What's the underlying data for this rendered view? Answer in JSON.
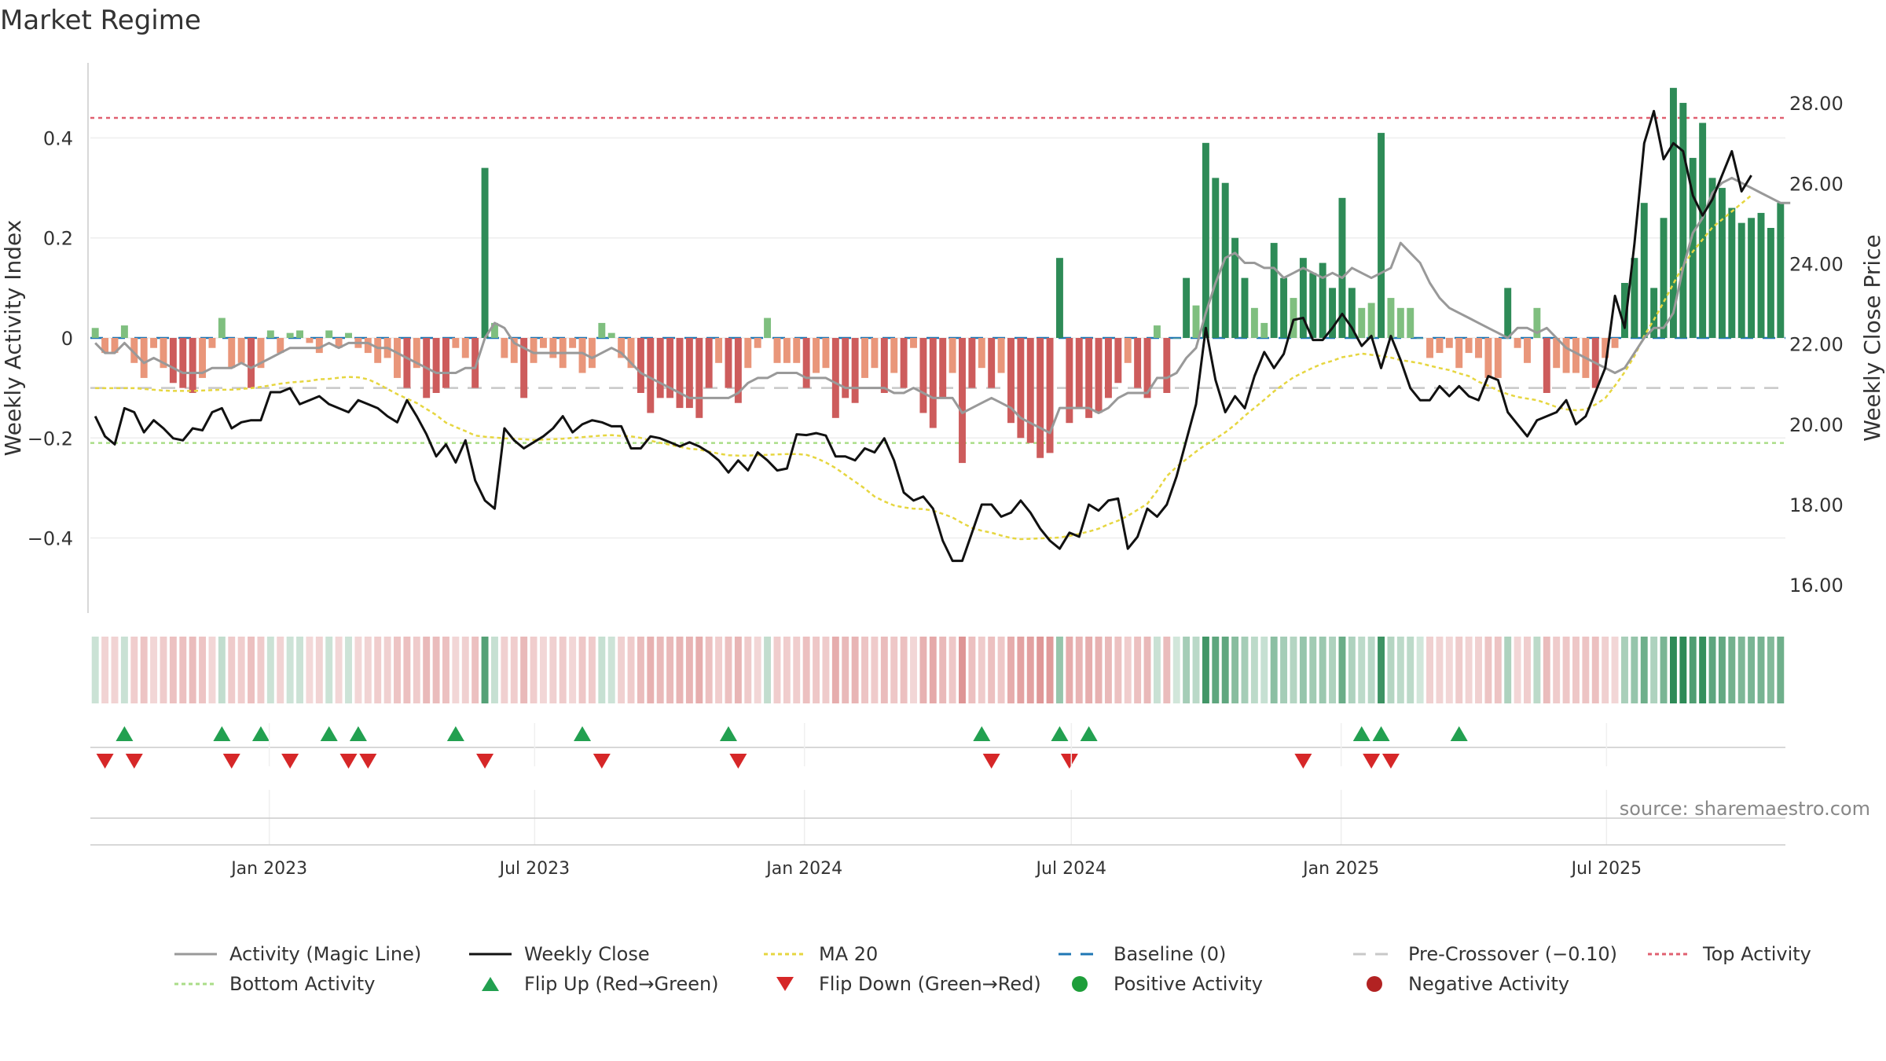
{
  "title": "Market Regime",
  "source": "source: sharemaestro.com",
  "colors": {
    "pos_strong": "#2e8b57",
    "pos_light": "#7fbf7f",
    "neg_strong": "#cd5c5c",
    "neg_light": "#e9967a",
    "magic": "#999999",
    "close": "#111111",
    "ma20": "#e6d640",
    "baseline": "#1f77b4",
    "pre": "#c8c8c8",
    "top": "#e06070",
    "bottom": "#aadd88",
    "flip_up": "#22a050",
    "flip_down": "#d62728"
  },
  "chart_data": {
    "type": "bar",
    "title": "Market Regime",
    "ylabel_left": "Weekly Activity Index",
    "ylabel_right": "Weekly Close Price",
    "ylim_left": [
      -0.55,
      0.55
    ],
    "ylim_right": [
      15.3,
      29.0
    ],
    "yticks_left": [
      "0.4",
      "0.2",
      "0",
      "−0.2",
      "−0.4"
    ],
    "yticks_left_values": [
      0.4,
      0.2,
      0,
      -0.2,
      -0.4
    ],
    "yticks_right": [
      "28.00",
      "26.00",
      "24.00",
      "22.00",
      "20.00",
      "18.00",
      "16.00"
    ],
    "yticks_right_values": [
      28,
      26,
      24,
      22,
      20,
      18,
      16
    ],
    "x_start": "2022-09-01",
    "x_end": "2025-10-31",
    "xticks": [
      "Jan 2023",
      "Jul 2023",
      "Jan 2024",
      "Jul 2024",
      "Jan 2025",
      "Jul 2025"
    ],
    "xtick_dates": [
      "2023-01-01",
      "2023-07-01",
      "2024-01-01",
      "2024-07-01",
      "2025-01-01",
      "2025-07-01"
    ],
    "reference_lines": {
      "baseline": 0,
      "pre_crossover": -0.1,
      "top_activity": 0.44,
      "bottom_activity": -0.21
    },
    "weekly_activity": [
      0.02,
      -0.03,
      -0.03,
      0.025,
      -0.05,
      -0.08,
      -0.02,
      -0.06,
      -0.09,
      -0.1,
      -0.11,
      -0.08,
      -0.02,
      0.04,
      -0.06,
      -0.05,
      -0.1,
      -0.06,
      0.015,
      -0.03,
      0.01,
      0.015,
      -0.01,
      -0.03,
      0.015,
      -0.02,
      0.01,
      -0.02,
      -0.03,
      -0.05,
      -0.04,
      -0.08,
      -0.1,
      -0.06,
      -0.12,
      -0.11,
      -0.1,
      -0.02,
      -0.04,
      -0.1,
      0.34,
      0.03,
      -0.04,
      -0.05,
      -0.12,
      -0.05,
      -0.02,
      -0.04,
      -0.06,
      -0.02,
      -0.07,
      -0.06,
      0.03,
      0.01,
      -0.04,
      -0.06,
      -0.11,
      -0.15,
      -0.12,
      -0.12,
      -0.14,
      -0.14,
      -0.16,
      -0.1,
      -0.05,
      -0.1,
      -0.13,
      -0.06,
      -0.02,
      0.04,
      -0.05,
      -0.05,
      -0.05,
      -0.1,
      -0.07,
      -0.06,
      -0.16,
      -0.12,
      -0.13,
      -0.08,
      -0.06,
      -0.11,
      -0.07,
      -0.1,
      -0.02,
      -0.15,
      -0.18,
      -0.12,
      -0.07,
      -0.25,
      -0.1,
      -0.06,
      -0.1,
      -0.07,
      -0.17,
      -0.2,
      -0.21,
      -0.24,
      -0.23,
      0.16,
      -0.17,
      -0.14,
      -0.16,
      -0.15,
      -0.12,
      -0.09,
      -0.05,
      -0.1,
      -0.12,
      0.025,
      -0.11,
      0.0,
      0.12,
      0.065,
      0.39,
      0.32,
      0.31,
      0.2,
      0.12,
      0.06,
      0.03,
      0.19,
      0.12,
      0.08,
      0.16,
      0.13,
      0.15,
      0.1,
      0.28,
      0.1,
      0.06,
      0.07,
      0.41,
      0.08,
      0.06,
      0.06,
      0.0,
      -0.04,
      -0.03,
      -0.02,
      -0.06,
      -0.03,
      -0.04,
      -0.08,
      -0.08,
      0.1,
      -0.02,
      -0.05,
      0.06,
      -0.11,
      -0.06,
      -0.07,
      -0.07,
      -0.08,
      -0.1,
      -0.04,
      -0.02,
      0.11,
      0.16,
      0.27,
      0.1,
      0.24,
      0.5,
      0.47,
      0.36,
      0.43,
      0.32,
      0.3,
      0.26,
      0.23,
      0.24,
      0.25,
      0.22,
      0.27
    ],
    "magic_line": [
      -0.01,
      -0.03,
      -0.03,
      -0.01,
      -0.03,
      -0.05,
      -0.04,
      -0.05,
      -0.06,
      -0.07,
      -0.07,
      -0.07,
      -0.06,
      -0.06,
      -0.06,
      -0.05,
      -0.06,
      -0.05,
      -0.04,
      -0.03,
      -0.02,
      -0.02,
      -0.02,
      -0.02,
      -0.01,
      -0.02,
      -0.01,
      -0.01,
      -0.01,
      -0.02,
      -0.02,
      -0.03,
      -0.04,
      -0.05,
      -0.06,
      -0.07,
      -0.07,
      -0.07,
      -0.06,
      -0.06,
      0.0,
      0.03,
      0.02,
      -0.01,
      -0.02,
      -0.03,
      -0.03,
      -0.03,
      -0.03,
      -0.03,
      -0.03,
      -0.04,
      -0.03,
      -0.02,
      -0.03,
      -0.05,
      -0.07,
      -0.08,
      -0.09,
      -0.1,
      -0.11,
      -0.12,
      -0.12,
      -0.12,
      -0.12,
      -0.12,
      -0.11,
      -0.09,
      -0.08,
      -0.08,
      -0.07,
      -0.07,
      -0.07,
      -0.08,
      -0.08,
      -0.08,
      -0.09,
      -0.1,
      -0.1,
      -0.1,
      -0.1,
      -0.1,
      -0.11,
      -0.11,
      -0.1,
      -0.11,
      -0.12,
      -0.12,
      -0.12,
      -0.15,
      -0.14,
      -0.13,
      -0.12,
      -0.13,
      -0.14,
      -0.16,
      -0.17,
      -0.18,
      -0.19,
      -0.14,
      -0.14,
      -0.14,
      -0.14,
      -0.15,
      -0.14,
      -0.12,
      -0.11,
      -0.11,
      -0.11,
      -0.08,
      -0.08,
      -0.07,
      -0.04,
      -0.02,
      0.05,
      0.11,
      0.16,
      0.17,
      0.15,
      0.15,
      0.14,
      0.14,
      0.12,
      0.13,
      0.14,
      0.13,
      0.12,
      0.13,
      0.12,
      0.14,
      0.13,
      0.12,
      0.13,
      0.14,
      0.19,
      0.17,
      0.15,
      0.11,
      0.08,
      0.06,
      0.05,
      0.04,
      0.03,
      0.02,
      0.01,
      0.0,
      0.02,
      0.02,
      0.01,
      0.02,
      0.0,
      -0.02,
      -0.03,
      -0.04,
      -0.05,
      -0.06,
      -0.07,
      -0.06,
      -0.03,
      0.0,
      0.02,
      0.02,
      0.05,
      0.14,
      0.21,
      0.24,
      0.29,
      0.31,
      0.32,
      0.31,
      0.3,
      0.29,
      0.28,
      0.27,
      0.27
    ],
    "weekly_close": [
      20.2,
      19.7,
      19.5,
      20.4,
      20.3,
      19.8,
      20.1,
      19.9,
      19.65,
      19.6,
      19.9,
      19.85,
      20.3,
      20.4,
      19.9,
      20.05,
      20.1,
      20.1,
      20.8,
      20.8,
      20.9,
      20.5,
      20.6,
      20.7,
      20.5,
      20.4,
      20.3,
      20.6,
      20.5,
      20.4,
      20.2,
      20.05,
      20.6,
      20.2,
      19.75,
      19.2,
      19.5,
      19.05,
      19.6,
      18.6,
      18.1,
      17.9,
      19.9,
      19.6,
      19.4,
      19.55,
      19.7,
      19.9,
      20.2,
      19.8,
      20.0,
      20.1,
      20.05,
      19.95,
      19.95,
      19.4,
      19.4,
      19.7,
      19.65,
      19.55,
      19.45,
      19.55,
      19.45,
      19.3,
      19.1,
      18.8,
      19.1,
      18.85,
      19.3,
      19.1,
      18.85,
      18.9,
      19.75,
      19.73,
      19.78,
      19.72,
      19.2,
      19.2,
      19.1,
      19.4,
      19.3,
      19.65,
      19.1,
      18.3,
      18.1,
      18.2,
      17.9,
      17.1,
      16.6,
      16.6,
      17.3,
      18.0,
      18.0,
      17.7,
      17.8,
      18.1,
      17.8,
      17.4,
      17.1,
      16.9,
      17.3,
      17.2,
      18.0,
      17.85,
      18.1,
      18.15,
      16.9,
      17.2,
      17.9,
      17.7,
      18.0,
      18.7,
      19.6,
      20.5,
      22.4,
      21.1,
      20.3,
      20.7,
      20.4,
      21.2,
      21.8,
      21.4,
      21.75,
      22.6,
      22.65,
      22.1,
      22.1,
      22.4,
      22.75,
      22.4,
      21.95,
      22.2,
      21.4,
      22.2,
      21.6,
      20.9,
      20.6,
      20.6,
      20.95,
      20.7,
      20.95,
      20.7,
      20.6,
      21.2,
      21.1,
      20.3,
      20.0,
      19.7,
      20.1,
      20.2,
      20.3,
      20.6,
      20.0,
      20.2,
      20.8,
      21.4,
      23.2,
      22.4,
      24.5,
      27.0,
      27.8,
      26.6,
      27.0,
      26.8,
      25.7,
      25.2,
      25.6,
      26.2,
      26.8,
      25.8,
      26.2
    ],
    "ma20": [
      20.9,
      20.9,
      20.9,
      20.9,
      20.9,
      20.88,
      20.86,
      20.84,
      20.83,
      20.83,
      20.83,
      20.84,
      20.85,
      20.86,
      20.86,
      20.88,
      20.9,
      20.93,
      20.97,
      21.01,
      21.04,
      21.06,
      21.08,
      21.12,
      21.13,
      21.16,
      21.18,
      21.17,
      21.12,
      21.01,
      20.88,
      20.75,
      20.64,
      20.53,
      20.38,
      20.23,
      20.04,
      19.93,
      19.83,
      19.72,
      19.69,
      19.67,
      19.65,
      19.64,
      19.63,
      19.61,
      19.62,
      19.63,
      19.64,
      19.66,
      19.68,
      19.7,
      19.72,
      19.73,
      19.71,
      19.7,
      19.66,
      19.59,
      19.54,
      19.49,
      19.44,
      19.39,
      19.37,
      19.32,
      19.27,
      19.23,
      19.22,
      19.22,
      19.23,
      19.24,
      19.25,
      19.26,
      19.26,
      19.24,
      19.16,
      19.05,
      18.91,
      18.74,
      18.57,
      18.4,
      18.2,
      18.08,
      17.98,
      17.93,
      17.9,
      17.89,
      17.85,
      17.77,
      17.68,
      17.54,
      17.42,
      17.35,
      17.3,
      17.23,
      17.17,
      17.14,
      17.15,
      17.16,
      17.17,
      17.18,
      17.22,
      17.27,
      17.33,
      17.4,
      17.51,
      17.6,
      17.72,
      17.87,
      18.02,
      18.34,
      18.71,
      18.94,
      19.13,
      19.32,
      19.49,
      19.64,
      19.8,
      19.99,
      20.21,
      20.41,
      20.61,
      20.82,
      21.0,
      21.17,
      21.29,
      21.41,
      21.51,
      21.58,
      21.67,
      21.71,
      21.76,
      21.73,
      21.7,
      21.66,
      21.6,
      21.56,
      21.52,
      21.46,
      21.4,
      21.35,
      21.27,
      21.2,
      21.06,
      20.96,
      20.84,
      20.75,
      20.68,
      20.64,
      20.6,
      20.52,
      20.43,
      20.37,
      20.35,
      20.37,
      20.49,
      20.65,
      20.96,
      21.3,
      21.7,
      22.2,
      22.6,
      23.04,
      23.5,
      23.95,
      24.3,
      24.6,
      24.9,
      25.1,
      25.3,
      25.5,
      25.7
    ],
    "flip_up_weeks": [
      3,
      13,
      17,
      24,
      27,
      37,
      50,
      65,
      91,
      99,
      102,
      130,
      132,
      140
    ],
    "flip_down_weeks": [
      1,
      4,
      14,
      20,
      26,
      28,
      40,
      52,
      66,
      92,
      100,
      124,
      131,
      133
    ]
  },
  "legend": [
    {
      "key": "magic",
      "label": "Activity (Magic Line)",
      "style": "line-solid-gray"
    },
    {
      "key": "close",
      "label": "Weekly Close",
      "style": "line-solid-black"
    },
    {
      "key": "ma20",
      "label": "MA 20",
      "style": "line-dotted-yellow"
    },
    {
      "key": "baseline",
      "label": "Baseline (0)",
      "style": "line-dashed-blue"
    },
    {
      "key": "pre",
      "label": "Pre-Crossover (−0.10)",
      "style": "line-dashed-gray"
    },
    {
      "key": "top",
      "label": "Top Activity",
      "style": "line-dotted-red"
    },
    {
      "key": "bottom",
      "label": "Bottom Activity",
      "style": "line-dotted-green"
    },
    {
      "key": "flip_up",
      "label": "Flip Up (Red→Green)",
      "style": "triangle-up-green"
    },
    {
      "key": "flip_down",
      "label": "Flip Down (Green→Red)",
      "style": "triangle-down-red"
    },
    {
      "key": "positive",
      "label": "Positive Activity",
      "style": "dot-green"
    },
    {
      "key": "negative",
      "label": "Negative Activity",
      "style": "dot-red"
    }
  ]
}
